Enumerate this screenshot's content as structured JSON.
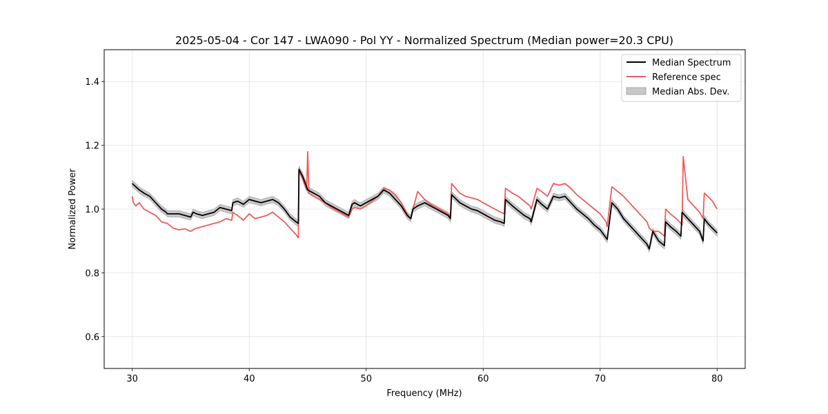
{
  "chart_data": {
    "type": "line",
    "title": "2025-05-04 - Cor 147 - LWA090 - Pol YY - Normalized Spectrum (Median power=20.3 CPU)",
    "xlabel": "Frequency (MHz)",
    "ylabel": "Normalized Power",
    "xlim": [
      27.6,
      82.4
    ],
    "ylim": [
      0.5,
      1.5
    ],
    "xticks": [
      30,
      40,
      50,
      60,
      70,
      80
    ],
    "yticks": [
      0.6,
      0.8,
      1.0,
      1.2,
      1.4
    ],
    "xtick_labels": [
      "30",
      "40",
      "50",
      "60",
      "70",
      "80"
    ],
    "ytick_labels": [
      "0.6",
      "0.8",
      "1.0",
      "1.2",
      "1.4"
    ],
    "grid": true,
    "legend_position": "top-right",
    "series": [
      {
        "name": "Median Spectrum",
        "kind": "line",
        "color": "#000000",
        "x": [
          30.0,
          30.3,
          30.6,
          31.0,
          31.5,
          32.0,
          32.5,
          32.9,
          33.0,
          33.5,
          34.0,
          34.5,
          35.0,
          35.2,
          35.5,
          36.0,
          36.5,
          37.0,
          37.5,
          38.0,
          38.5,
          38.6,
          39.0,
          39.5,
          40.0,
          40.5,
          41.0,
          41.5,
          42.0,
          42.5,
          43.0,
          43.5,
          44.0,
          44.2,
          44.25,
          44.6,
          45.0,
          45.5,
          46.0,
          46.5,
          47.0,
          47.5,
          48.0,
          48.5,
          48.8,
          49.0,
          49.5,
          50.0,
          50.5,
          51.0,
          51.5,
          52.0,
          52.5,
          53.0,
          53.5,
          53.8,
          54.0,
          54.4,
          55.0,
          55.5,
          56.0,
          56.5,
          57.0,
          57.2,
          57.3,
          58.0,
          58.5,
          59.0,
          59.5,
          60.0,
          60.5,
          61.0,
          61.5,
          61.8,
          61.9,
          62.5,
          63.0,
          63.5,
          64.0,
          64.1,
          64.6,
          65.0,
          65.5,
          66.0,
          66.5,
          67.0,
          67.5,
          68.0,
          68.5,
          69.0,
          69.5,
          70.0,
          70.5,
          70.6,
          71.0,
          71.5,
          72.0,
          72.5,
          73.0,
          73.5,
          74.0,
          74.2,
          74.5,
          75.0,
          75.5,
          75.6,
          76.0,
          76.5,
          76.9,
          77.0,
          77.5,
          78.0,
          78.5,
          78.8,
          78.9,
          79.2,
          79.6,
          80.0
        ],
        "y": [
          1.08,
          1.07,
          1.06,
          1.05,
          1.04,
          1.02,
          1.0,
          0.99,
          0.985,
          0.985,
          0.985,
          0.98,
          0.975,
          0.99,
          0.985,
          0.98,
          0.985,
          0.99,
          1.005,
          1.0,
          0.995,
          1.02,
          1.025,
          1.015,
          1.03,
          1.025,
          1.02,
          1.025,
          1.03,
          1.02,
          1.0,
          0.975,
          0.96,
          0.955,
          1.125,
          1.1,
          1.06,
          1.05,
          1.04,
          1.02,
          1.01,
          1.0,
          0.99,
          0.98,
          1.015,
          1.02,
          1.01,
          1.02,
          1.03,
          1.04,
          1.06,
          1.05,
          1.03,
          1.01,
          0.98,
          0.97,
          1.0,
          1.01,
          1.02,
          1.01,
          1.0,
          0.99,
          0.98,
          0.97,
          1.045,
          1.02,
          1.01,
          1.0,
          0.995,
          0.985,
          0.975,
          0.965,
          0.96,
          0.955,
          1.03,
          1.01,
          0.995,
          0.98,
          0.97,
          0.96,
          1.03,
          1.015,
          1.0,
          1.04,
          1.035,
          1.04,
          1.02,
          1.0,
          0.985,
          0.97,
          0.95,
          0.935,
          0.91,
          0.905,
          1.02,
          1.0,
          0.97,
          0.95,
          0.93,
          0.91,
          0.89,
          0.875,
          0.93,
          0.9,
          0.885,
          0.96,
          0.945,
          0.93,
          0.915,
          0.99,
          0.97,
          0.95,
          0.93,
          0.9,
          0.97,
          0.955,
          0.94,
          0.925
        ]
      },
      {
        "name": "Reference spec",
        "kind": "line",
        "color": "#f05a5a",
        "x": [
          30.0,
          30.1,
          30.3,
          30.6,
          31.0,
          31.5,
          32.0,
          32.5,
          33.0,
          33.5,
          34.0,
          34.5,
          35.0,
          35.2,
          35.5,
          36.0,
          36.5,
          37.0,
          37.5,
          38.0,
          38.5,
          38.6,
          39.0,
          39.5,
          40.0,
          40.5,
          41.0,
          41.5,
          42.0,
          42.5,
          43.0,
          43.5,
          44.0,
          44.2,
          44.25,
          44.6,
          44.9,
          45.0,
          45.1,
          45.5,
          46.0,
          46.5,
          47.0,
          47.5,
          48.0,
          48.5,
          48.8,
          49.0,
          49.5,
          50.0,
          50.5,
          51.0,
          51.5,
          52.0,
          52.5,
          53.0,
          53.5,
          53.8,
          54.0,
          54.4,
          55.0,
          55.5,
          56.0,
          56.5,
          57.0,
          57.2,
          57.3,
          58.0,
          58.5,
          59.0,
          59.5,
          60.0,
          60.5,
          61.0,
          61.5,
          61.8,
          61.9,
          62.5,
          63.0,
          63.5,
          64.0,
          64.1,
          64.6,
          65.0,
          65.5,
          66.0,
          66.5,
          67.0,
          67.5,
          68.0,
          68.5,
          69.0,
          69.5,
          70.0,
          70.5,
          70.6,
          71.0,
          71.5,
          72.0,
          72.5,
          73.0,
          73.5,
          74.0,
          74.2,
          74.5,
          75.0,
          75.5,
          75.6,
          76.0,
          76.5,
          76.9,
          77.0,
          77.1,
          77.5,
          78.0,
          78.5,
          78.8,
          78.9,
          79.2,
          79.6,
          80.0
        ],
        "y": [
          1.04,
          1.02,
          1.01,
          1.02,
          1.0,
          0.99,
          0.98,
          0.96,
          0.955,
          0.94,
          0.935,
          0.938,
          0.93,
          0.935,
          0.94,
          0.945,
          0.95,
          0.955,
          0.96,
          0.97,
          0.965,
          0.99,
          0.98,
          0.965,
          0.985,
          0.97,
          0.975,
          0.98,
          0.99,
          0.975,
          0.96,
          0.94,
          0.92,
          0.91,
          1.12,
          1.09,
          1.06,
          1.18,
          1.05,
          1.04,
          1.03,
          1.02,
          1.005,
          0.995,
          0.985,
          0.975,
          1.0,
          1.005,
          1.0,
          1.01,
          1.025,
          1.04,
          1.065,
          1.06,
          1.045,
          1.02,
          0.985,
          0.97,
          1.0,
          1.055,
          1.03,
          1.015,
          1.005,
          0.995,
          0.985,
          0.975,
          1.08,
          1.05,
          1.04,
          1.035,
          1.03,
          1.02,
          1.01,
          1.0,
          0.99,
          0.985,
          1.065,
          1.05,
          1.04,
          1.025,
          1.01,
          1.0,
          1.065,
          1.055,
          1.04,
          1.08,
          1.075,
          1.08,
          1.065,
          1.045,
          1.03,
          1.015,
          1.0,
          0.985,
          0.96,
          0.945,
          1.07,
          1.055,
          1.04,
          1.02,
          1.0,
          0.98,
          0.96,
          0.94,
          0.93,
          0.93,
          0.915,
          1.0,
          0.985,
          0.97,
          0.955,
          0.95,
          1.165,
          1.03,
          1.01,
          0.99,
          0.97,
          1.05,
          1.04,
          1.025,
          1.0
        ]
      },
      {
        "name": "Median Abs. Dev.",
        "kind": "band",
        "color": "#c8c8c8",
        "deviation": 0.01
      }
    ]
  }
}
